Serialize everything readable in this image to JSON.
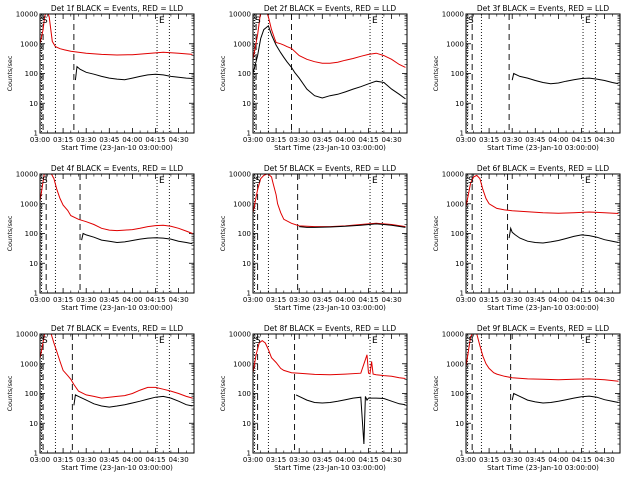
{
  "panel_titles": [
    "Det 1f BLACK = Events, RED = LLD",
    "Det 2f BLACK = Events, RED = LLD",
    "Det 3f BLACK = Events, RED = LLD",
    "Det 4f BLACK = Events, RED = LLD",
    "Det 5f BLACK = Events, RED = LLD",
    "Det 6f BLACK = Events, RED = LLD",
    "Det 7f BLACK = Events, RED = LLD",
    "Det 8f BLACK = Events, RED = LLD",
    "Det 9f BLACK = Events, RED = LLD"
  ],
  "xlabel": "Start Time (23-Jan-10 03:00:00)",
  "ylabel": "Counts/sec",
  "marker_labels": {
    "start": "S",
    "end": "E"
  },
  "colors": {
    "events": "#000000",
    "lld": "#e00000",
    "axes": "#000000"
  },
  "chart_data": {
    "type": "line",
    "x_unit": "minutes after 03:00",
    "xlim": [
      0,
      100
    ],
    "ylim": [
      1,
      10000
    ],
    "y_scale": "log",
    "x_ticks": [
      {
        "x": 0,
        "label": "03:00"
      },
      {
        "x": 15,
        "label": "03:15"
      },
      {
        "x": 30,
        "label": "03:30"
      },
      {
        "x": 45,
        "label": "03:45"
      },
      {
        "x": 60,
        "label": "04:00"
      },
      {
        "x": 75,
        "label": "04:15"
      },
      {
        "x": 90,
        "label": "04:30"
      }
    ],
    "y_ticks": [
      {
        "y": 1,
        "label": "1"
      },
      {
        "y": 10,
        "label": "10"
      },
      {
        "y": 100,
        "label": "100"
      },
      {
        "y": 1000,
        "label": "1000"
      },
      {
        "y": 10000,
        "label": "10000"
      }
    ],
    "dotted_lines_x": [
      1,
      10,
      76,
      84
    ],
    "panels": [
      {
        "dashed_x": [
          2,
          22
        ],
        "series": [
          {
            "color": "#e00000",
            "x": [
              0,
              2,
              3,
              4,
              5,
              6,
              7,
              8,
              10,
              13,
              16,
              20,
              25,
              30,
              40,
              50,
              60,
              70,
              80,
              90,
              99
            ],
            "y": [
              1000,
              3000,
              8000,
              12000,
              11000,
              8000,
              3000,
              1200,
              800,
              680,
              620,
              560,
              520,
              480,
              440,
              420,
              430,
              470,
              520,
              480,
              440
            ]
          },
          {
            "color": "#000000",
            "x": [
              23,
              24,
              26,
              30,
              35,
              40,
              45,
              50,
              55,
              60,
              65,
              70,
              75,
              80,
              85,
              90,
              95,
              99
            ],
            "y": [
              60,
              170,
              140,
              110,
              95,
              80,
              70,
              65,
              62,
              70,
              80,
              90,
              95,
              90,
              80,
              75,
              70,
              68
            ]
          }
        ]
      },
      {
        "dashed_x": [
          2,
          25
        ],
        "series": [
          {
            "color": "#e00000",
            "x": [
              0,
              3,
              5,
              7,
              9,
              10,
              12,
              14,
              15,
              18,
              20,
              22,
              25,
              30,
              35,
              40,
              45,
              50,
              55,
              60,
              65,
              70,
              75,
              80,
              85,
              90,
              95,
              99
            ],
            "y": [
              300,
              2000,
              12000,
              12000,
              11000,
              8000,
              3000,
              1500,
              1100,
              1000,
              900,
              800,
              700,
              400,
              300,
              250,
              220,
              220,
              240,
              280,
              320,
              380,
              440,
              480,
              400,
              300,
              200,
              160
            ]
          },
          {
            "color": "#000000",
            "x": [
              0,
              3,
              5,
              7,
              10,
              12,
              15,
              18,
              20,
              22,
              25,
              27,
              30,
              35,
              40,
              45,
              50,
              55,
              60,
              65,
              70,
              75,
              80,
              85,
              90,
              95,
              99
            ],
            "y": [
              100,
              400,
              1500,
              3000,
              4000,
              2000,
              900,
              500,
              350,
              250,
              160,
              110,
              70,
              30,
              18,
              15,
              18,
              20,
              24,
              30,
              36,
              45,
              55,
              50,
              30,
              20,
              14
            ]
          }
        ]
      },
      {
        "dashed_x": [
          4,
          28
        ],
        "series": [
          {
            "color": "#000000",
            "x": [
              30,
              31,
              35,
              40,
              45,
              50,
              55,
              60,
              65,
              70,
              75,
              80,
              85,
              90,
              95,
              99
            ],
            "y": [
              60,
              100,
              80,
              70,
              58,
              50,
              45,
              48,
              55,
              62,
              68,
              70,
              65,
              58,
              50,
              45
            ]
          }
        ]
      },
      {
        "dashed_x": [
          4,
          26
        ],
        "series": [
          {
            "color": "#e00000",
            "x": [
              0,
              3,
              5,
              7,
              9,
              11,
              13,
              15,
              18,
              20,
              25,
              30,
              35,
              40,
              45,
              50,
              55,
              60,
              65,
              70,
              75,
              80,
              85,
              90,
              95,
              99
            ],
            "y": [
              1200,
              12000,
              12000,
              11000,
              7000,
              3000,
              1500,
              900,
              600,
              400,
              300,
              250,
              200,
              150,
              130,
              125,
              130,
              135,
              150,
              170,
              185,
              190,
              175,
              150,
              120,
              100
            ]
          },
          {
            "color": "#000000",
            "x": [
              27,
              28,
              30,
              35,
              40,
              45,
              50,
              55,
              60,
              65,
              70,
              75,
              80,
              85,
              90,
              95,
              99
            ],
            "y": [
              60,
              100,
              90,
              75,
              60,
              55,
              50,
              52,
              58,
              65,
              70,
              72,
              70,
              65,
              55,
              50,
              45
            ]
          }
        ]
      },
      {
        "dashed_x": [
          3,
          29
        ],
        "series": [
          {
            "color": "#e00000",
            "x": [
              0,
              3,
              5,
              7,
              9,
              10,
              12,
              13,
              15,
              16,
              18,
              20,
              25,
              30,
              40,
              50,
              60,
              70,
              80,
              90,
              99
            ],
            "y": [
              500,
              3000,
              7000,
              9000,
              10000,
              9800,
              8000,
              5000,
              2000,
              1000,
              500,
              300,
              220,
              180,
              170,
              170,
              180,
              200,
              220,
              200,
              170
            ]
          },
          {
            "color": "#000000",
            "x": [
              30,
              35,
              40,
              50,
              60,
              70,
              80,
              90,
              99
            ],
            "y": [
              170,
              160,
              160,
              165,
              175,
              190,
              210,
              190,
              160
            ]
          }
        ]
      },
      {
        "dashed_x": [
          4,
          27
        ],
        "series": [
          {
            "color": "#e00000",
            "x": [
              0,
              3,
              5,
              7,
              9,
              11,
              13,
              15,
              18,
              20,
              25,
              30,
              40,
              50,
              60,
              70,
              80,
              90,
              99
            ],
            "y": [
              800,
              5000,
              8000,
              9000,
              7000,
              3000,
              1500,
              1000,
              800,
              700,
              620,
              580,
              540,
              500,
              480,
              500,
              530,
              500,
              470
            ]
          },
          {
            "color": "#000000",
            "x": [
              28,
              29,
              30,
              32,
              35,
              40,
              45,
              50,
              55,
              60,
              65,
              70,
              75,
              80,
              85,
              90,
              95,
              99
            ],
            "y": [
              70,
              150,
              110,
              90,
              70,
              55,
              50,
              48,
              52,
              58,
              68,
              80,
              90,
              85,
              75,
              62,
              55,
              50
            ]
          }
        ]
      },
      {
        "dashed_x": [
          2,
          21
        ],
        "series": [
          {
            "color": "#e00000",
            "x": [
              0,
              3,
              5,
              7,
              9,
              11,
              13,
              15,
              18,
              20,
              22,
              25,
              30,
              35,
              40,
              45,
              50,
              55,
              60,
              65,
              70,
              75,
              80,
              85,
              90,
              95,
              99
            ],
            "y": [
              1500,
              10000,
              12000,
              11000,
              5000,
              2500,
              1200,
              600,
              400,
              300,
              200,
              120,
              90,
              80,
              70,
              75,
              80,
              85,
              100,
              130,
              160,
              160,
              140,
              120,
              100,
              80,
              70
            ]
          },
          {
            "color": "#000000",
            "x": [
              22,
              23,
              25,
              30,
              35,
              40,
              45,
              50,
              55,
              60,
              65,
              70,
              75,
              80,
              85,
              90,
              95,
              99
            ],
            "y": [
              40,
              90,
              80,
              60,
              45,
              38,
              35,
              38,
              42,
              48,
              55,
              65,
              75,
              80,
              70,
              55,
              42,
              38
            ]
          }
        ]
      },
      {
        "dashed_x": [
          3,
          27
        ],
        "series": [
          {
            "color": "#e00000",
            "x": [
              0,
              2,
              4,
              6,
              8,
              10,
              12,
              15,
              18,
              20,
              25,
              30,
              40,
              50,
              60,
              70,
              74,
              75,
              76,
              77,
              78,
              80,
              85,
              90,
              95,
              99
            ],
            "y": [
              500,
              2000,
              5000,
              6000,
              5000,
              3000,
              1600,
              1100,
              700,
              600,
              500,
              480,
              440,
              430,
              450,
              480,
              2000,
              480,
              460,
              1200,
              450,
              430,
              400,
              380,
              340,
              320
            ]
          },
          {
            "color": "#000000",
            "x": [
              28,
              30,
              35,
              40,
              45,
              50,
              55,
              60,
              65,
              70,
              72,
              73,
              74,
              75,
              80,
              85,
              90,
              95,
              99
            ],
            "y": [
              90,
              80,
              60,
              50,
              48,
              50,
              55,
              62,
              70,
              75,
              2,
              80,
              60,
              70,
              70,
              68,
              55,
              45,
              42
            ]
          }
        ]
      },
      {
        "dashed_x": [
          4,
          29
        ],
        "series": [
          {
            "color": "#e00000",
            "x": [
              0,
              3,
              5,
              7,
              9,
              11,
              13,
              15,
              18,
              20,
              25,
              30,
              40,
              50,
              60,
              70,
              80,
              90,
              99
            ],
            "y": [
              800,
              8000,
              12000,
              10000,
              4000,
              1800,
              1000,
              700,
              500,
              450,
              380,
              340,
              310,
              300,
              290,
              300,
              310,
              290,
              260
            ]
          },
          {
            "color": "#000000",
            "x": [
              30,
              31,
              35,
              40,
              45,
              50,
              55,
              60,
              65,
              70,
              75,
              80,
              85,
              90,
              95,
              99
            ],
            "y": [
              60,
              100,
              80,
              60,
              52,
              48,
              50,
              55,
              62,
              70,
              78,
              82,
              75,
              62,
              55,
              50
            ]
          }
        ]
      }
    ]
  }
}
